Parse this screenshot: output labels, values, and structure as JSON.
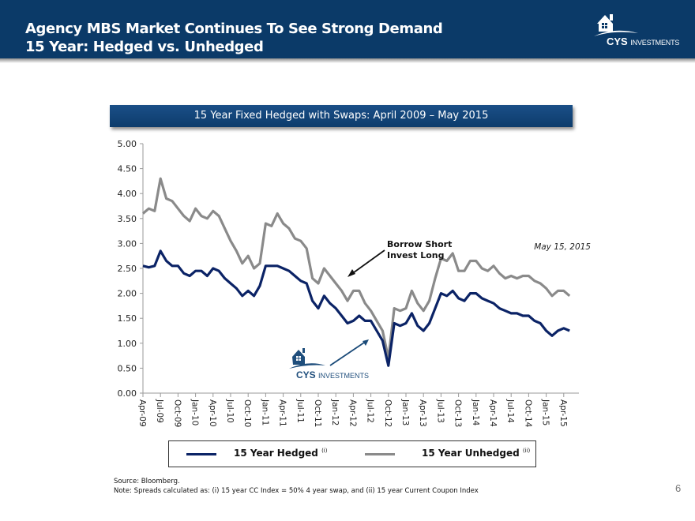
{
  "header": {
    "title_line1": "Agency MBS Market Continues To See Strong Demand",
    "title_line2": "15 Year: Hedged vs. Unhedged",
    "logo": {
      "brand": "CYS",
      "suffix": "INVESTMENTS",
      "icon": "house-icon"
    }
  },
  "chart_banner": "15 Year Fixed Hedged with Swaps: April 2009 – May 2015",
  "chart_data": {
    "type": "line",
    "title": "15 Year Fixed Hedged with Swaps: April 2009 – May 2015",
    "xlabel": "",
    "ylabel": "",
    "ylim": [
      0,
      5
    ],
    "yticks": [
      "0.00",
      "0.50",
      "1.00",
      "1.50",
      "2.00",
      "2.50",
      "3.00",
      "3.50",
      "4.00",
      "4.50",
      "5.00"
    ],
    "xticks": [
      "Apr-09",
      "Jul-09",
      "Oct-09",
      "Jan-10",
      "Apr-10",
      "Jul-10",
      "Oct-10",
      "Jan-11",
      "Apr-11",
      "Jul-11",
      "Oct-11",
      "Jan-12",
      "Apr-12",
      "Jul-12",
      "Oct-12",
      "Jan-13",
      "Apr-13",
      "Jul-13",
      "Oct-13",
      "Jan-14",
      "Apr-14",
      "Jul-14",
      "Oct-14",
      "Jan-15",
      "Apr-15"
    ],
    "x_start": "Apr-09",
    "x_step": "monthly",
    "grid": false,
    "legend": "bottom",
    "series": [
      {
        "name": "15 Year Hedged",
        "footnote": "(i)",
        "color": "#0b2366",
        "values": [
          2.55,
          2.52,
          2.55,
          2.85,
          2.65,
          2.55,
          2.55,
          2.4,
          2.35,
          2.45,
          2.45,
          2.35,
          2.5,
          2.45,
          2.3,
          2.2,
          2.1,
          1.95,
          2.05,
          1.95,
          2.15,
          2.55,
          2.55,
          2.55,
          2.5,
          2.45,
          2.35,
          2.25,
          2.2,
          1.85,
          1.7,
          1.95,
          1.8,
          1.7,
          1.55,
          1.4,
          1.45,
          1.55,
          1.45,
          1.45,
          1.25,
          1.05,
          0.55,
          1.4,
          1.35,
          1.4,
          1.6,
          1.35,
          1.25,
          1.4,
          1.7,
          2.0,
          1.95,
          2.05,
          1.9,
          1.85,
          2.0,
          2.0,
          1.9,
          1.85,
          1.8,
          1.7,
          1.65,
          1.6,
          1.6,
          1.55,
          1.55,
          1.45,
          1.4,
          1.25,
          1.15,
          1.25,
          1.3,
          1.25
        ]
      },
      {
        "name": "15 Year Unhedged",
        "footnote": "(ii)",
        "color": "#8a8a8a",
        "values": [
          3.6,
          3.7,
          3.65,
          4.3,
          3.9,
          3.85,
          3.7,
          3.55,
          3.45,
          3.7,
          3.55,
          3.5,
          3.65,
          3.55,
          3.3,
          3.05,
          2.85,
          2.6,
          2.75,
          2.5,
          2.6,
          3.4,
          3.35,
          3.6,
          3.4,
          3.3,
          3.1,
          3.05,
          2.9,
          2.3,
          2.2,
          2.5,
          2.35,
          2.2,
          2.05,
          1.85,
          2.05,
          2.05,
          1.8,
          1.65,
          1.45,
          1.25,
          0.7,
          1.7,
          1.65,
          1.7,
          2.05,
          1.8,
          1.65,
          1.85,
          2.3,
          2.7,
          2.65,
          2.8,
          2.45,
          2.45,
          2.65,
          2.65,
          2.5,
          2.45,
          2.55,
          2.4,
          2.3,
          2.35,
          2.3,
          2.35,
          2.35,
          2.25,
          2.2,
          2.1,
          1.95,
          2.05,
          2.05,
          1.95
        ]
      }
    ],
    "annotations": [
      {
        "text_line1": "Borrow Short",
        "text_line2": "Invest Long",
        "arrow_to": "Feb-12"
      },
      {
        "text": "May 15, 2015",
        "position": "top-right"
      },
      {
        "text": "CYS INVESTMENTS",
        "type": "logo",
        "arrow_to": "Sep-12"
      }
    ]
  },
  "legend": {
    "items": [
      {
        "label": "15 Year Hedged",
        "sup": "(i)",
        "color": "#0b2366"
      },
      {
        "label": "15 Year Unhedged",
        "sup": "(ii)",
        "color": "#8a8a8a"
      }
    ]
  },
  "footer": {
    "source": "Source: Bloomberg.",
    "note": "Note: Spreads calculated as: (i) 15 year CC  Index  = 50% 4 year swap, and (ii) 15 year Current Coupon Index",
    "page_number": "6"
  },
  "annotation_logo": {
    "brand": "CYS",
    "suffix": "INVESTMENTS"
  }
}
